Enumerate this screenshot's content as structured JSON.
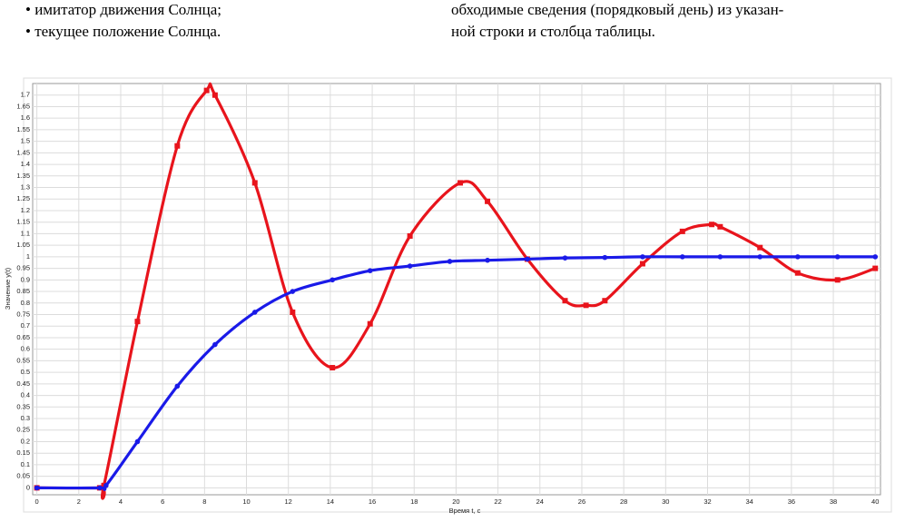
{
  "text": {
    "left": [
      "• имитатор движения Солнца;",
      "• текущее положение Солнца."
    ],
    "right": [
      "обходимые сведения (порядковый день) из указан-",
      "ной строки и столбца таблицы."
    ]
  },
  "chart_data": {
    "type": "line",
    "x_label": "Время t, с",
    "y_label": "Значение y(t)",
    "xlim": [
      -0.2,
      40.25
    ],
    "ylim": [
      -0.03,
      1.75
    ],
    "xticks": [
      0,
      2,
      4,
      6,
      8,
      10,
      12,
      14,
      16,
      18,
      20,
      22,
      24,
      26,
      28,
      30,
      32,
      34,
      36,
      38,
      40
    ],
    "yticks": [
      0,
      0.05,
      0.1,
      0.15,
      0.2,
      0.25,
      0.3,
      0.35,
      0.4,
      0.45,
      0.5,
      0.55,
      0.6,
      0.65,
      0.7,
      0.75,
      0.8,
      0.85,
      0.9,
      0.95,
      1,
      1.05,
      1.1,
      1.15,
      1.2,
      1.25,
      1.3,
      1.35,
      1.4,
      1.45,
      1.5,
      1.55,
      1.6,
      1.65,
      1.7
    ],
    "grid": true,
    "series": [
      {
        "color": "#e8141c",
        "marker": "square",
        "x": [
          0,
          3,
          3.2,
          4.8,
          6.7,
          8.1,
          8.5,
          10.4,
          12.2,
          14.1,
          15.9,
          17.8,
          20.2,
          21.5,
          23.4,
          25.2,
          26.2,
          27.1,
          28.9,
          30.8,
          32.2,
          32.6,
          34.5,
          36.3,
          38.2,
          40
        ],
        "values": [
          0,
          0,
          0.01,
          0.72,
          1.48,
          1.72,
          1.7,
          1.32,
          0.76,
          0.52,
          0.71,
          1.09,
          1.32,
          1.24,
          0.99,
          0.81,
          0.79,
          0.81,
          0.97,
          1.11,
          1.14,
          1.13,
          1.04,
          0.93,
          0.9,
          0.95
        ]
      },
      {
        "color": "#1a1ae8",
        "marker": "circle",
        "x": [
          0,
          3,
          3.3,
          4.8,
          6.7,
          8.5,
          10.4,
          12.2,
          14.1,
          15.9,
          17.8,
          19.7,
          21.5,
          23.4,
          25.2,
          27.1,
          28.9,
          30.8,
          32.6,
          34.5,
          36.3,
          38.2,
          40
        ],
        "values": [
          0,
          0,
          0.01,
          0.2,
          0.44,
          0.62,
          0.76,
          0.85,
          0.9,
          0.94,
          0.96,
          0.98,
          0.985,
          0.99,
          0.995,
          0.997,
          1,
          1,
          1,
          1,
          1,
          1,
          1
        ]
      }
    ]
  }
}
